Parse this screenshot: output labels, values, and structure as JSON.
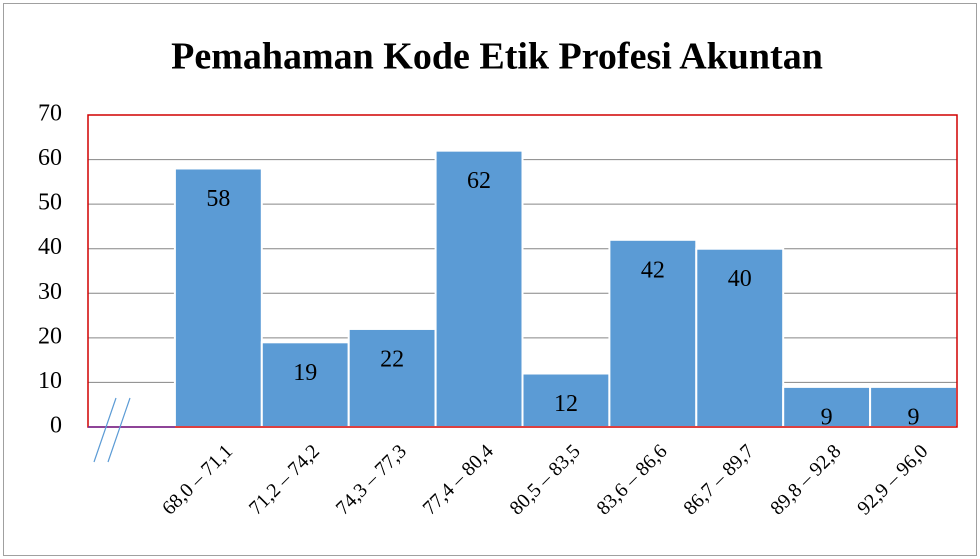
{
  "chart_data": {
    "type": "bar",
    "title": "Pemahaman Kode Etik Profesi Akuntan",
    "categories": [
      null,
      "68,0 – 71,1",
      "71,2 – 74,2",
      "74,3 – 77,3",
      "77,4 – 80,4",
      "80,5 – 83,5",
      "83,6 – 86,6",
      "86,7 – 89,7",
      "89,8 – 92,8",
      "92,9 – 96,0"
    ],
    "values": [
      null,
      58,
      19,
      22,
      62,
      12,
      42,
      40,
      9,
      9
    ],
    "color": "#5b9bd5",
    "ylim": [
      0,
      70
    ],
    "yticks": [
      0,
      10,
      20,
      30,
      40,
      50,
      60,
      70
    ],
    "grid": true
  }
}
